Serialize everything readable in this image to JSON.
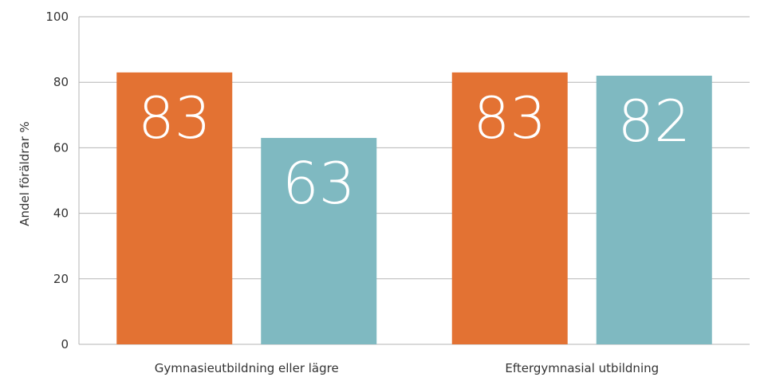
{
  "chart_data": {
    "type": "bar",
    "categories": [
      "Gymnasieutbildning eller lägre",
      "Eftergymnasial utbildning"
    ],
    "series": [
      {
        "values": [
          83,
          83
        ],
        "color": "#e37233"
      },
      {
        "values": [
          63,
          82
        ],
        "color": "#7fb9c1"
      }
    ],
    "ylabel": "Andel föräldrar %",
    "xlabel": "",
    "ylim": [
      0,
      100
    ],
    "yticks": [
      0,
      20,
      40,
      60,
      80,
      100
    ],
    "grid": true,
    "legend": "none",
    "data_labels": true
  }
}
